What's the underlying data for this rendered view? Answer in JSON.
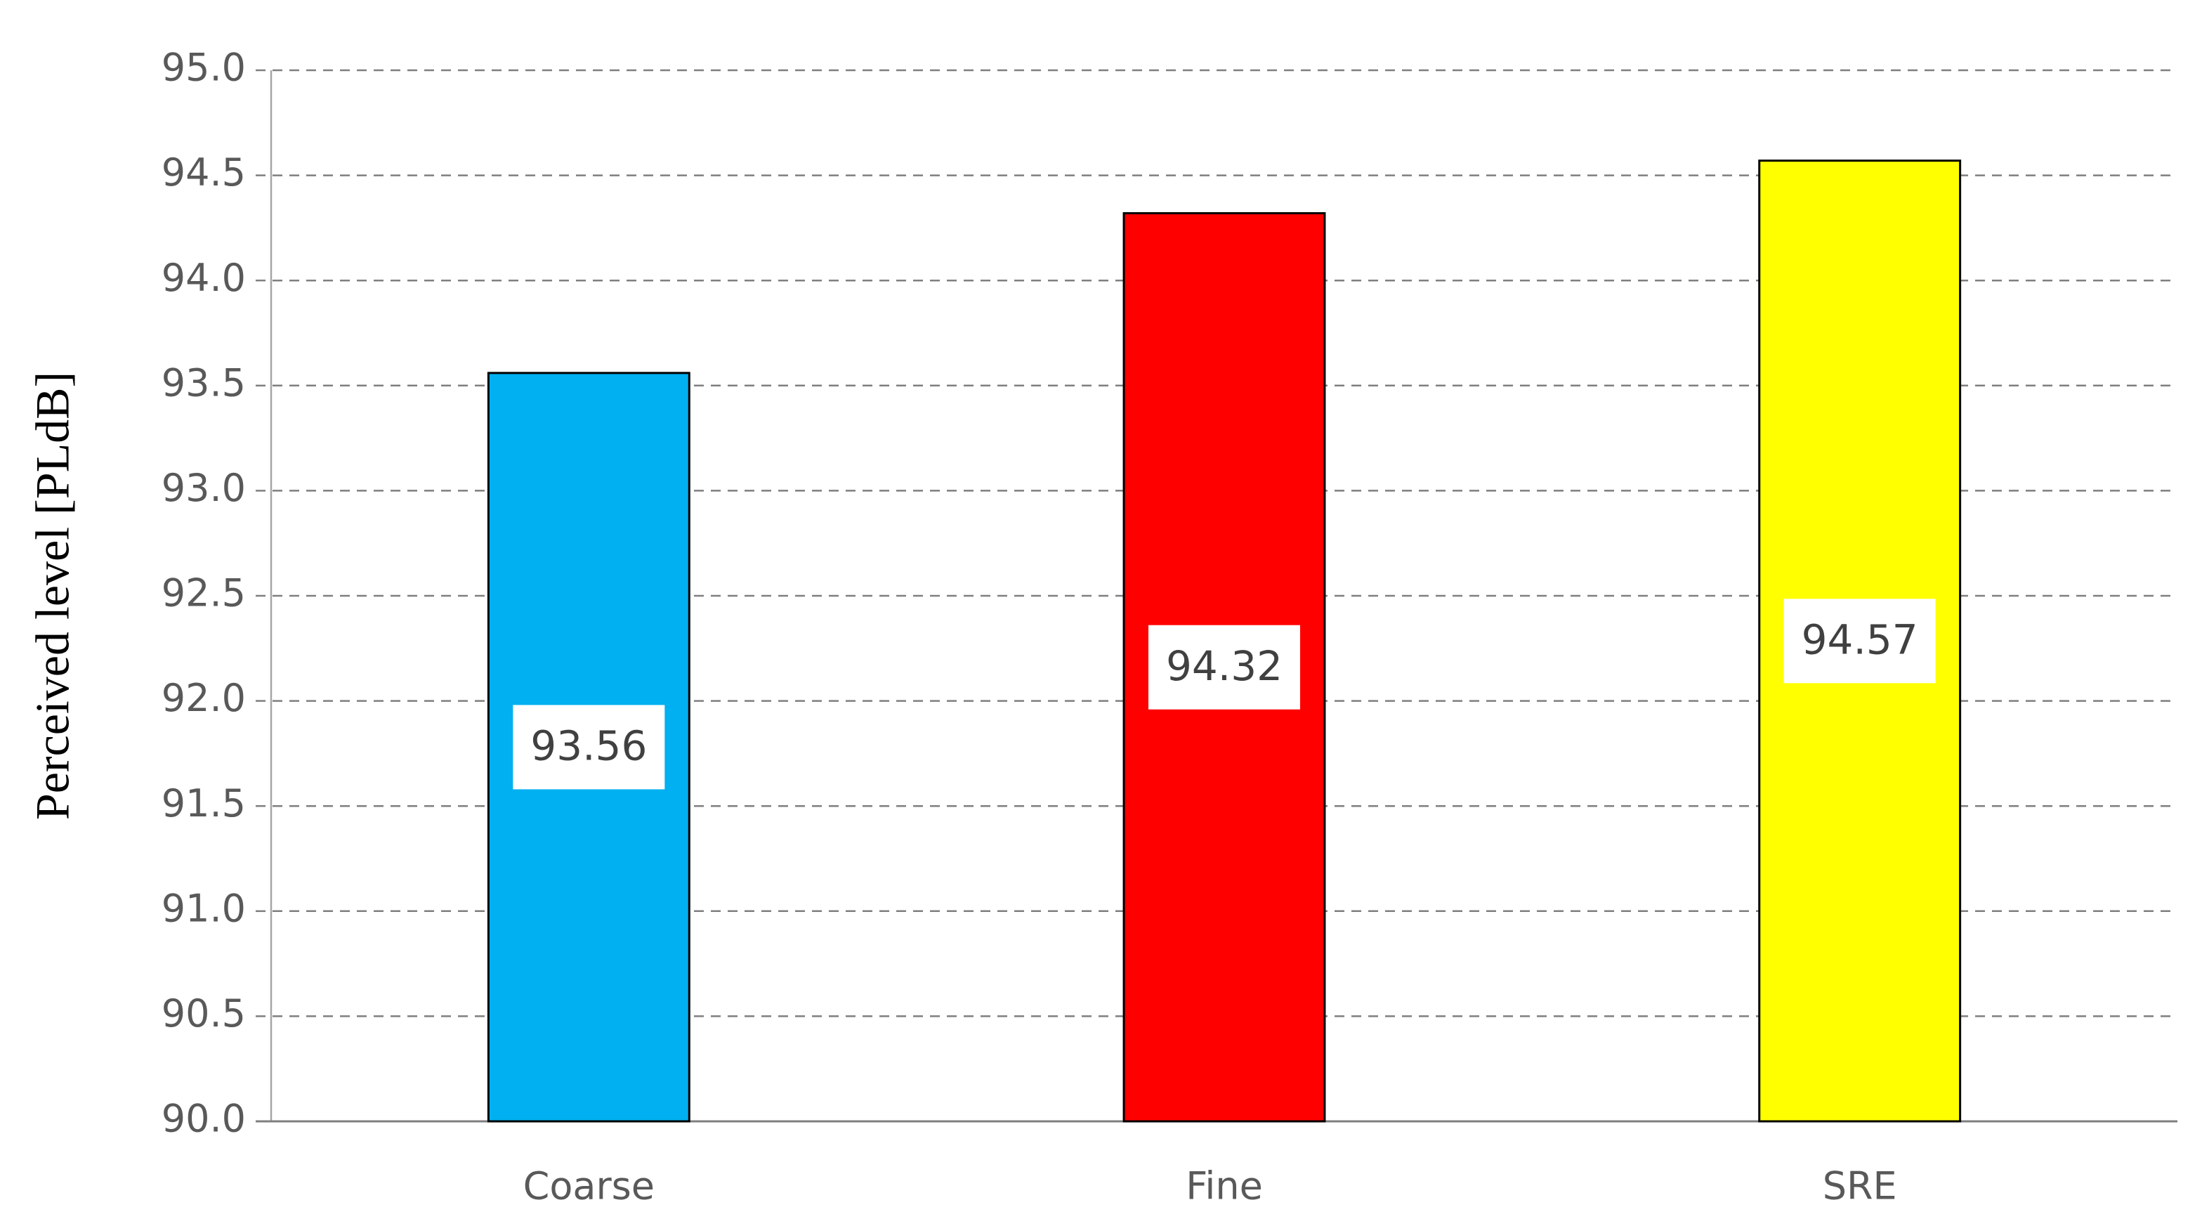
{
  "chart_data": {
    "type": "bar",
    "y_label": "Perceived level [PLdB]",
    "categories": [
      "Coarse",
      "Fine",
      "SRE"
    ],
    "values": [
      93.56,
      94.32,
      94.57
    ],
    "colors": [
      "#00b0f0",
      "#ff0000",
      "#ffff00"
    ],
    "ylim": [
      90,
      95
    ],
    "yticks": [
      {
        "value": 90,
        "label": "90.0"
      },
      90.5,
      {
        "value": 91,
        "label": "91.0"
      },
      91.5,
      {
        "value": 92,
        "label": "92.0"
      },
      92.5,
      {
        "value": 93,
        "label": "93.0"
      },
      93.5,
      {
        "value": 94,
        "label": "94.0"
      },
      94.5,
      {
        "value": 95,
        "label": "95.0"
      }
    ],
    "grid": true
  }
}
